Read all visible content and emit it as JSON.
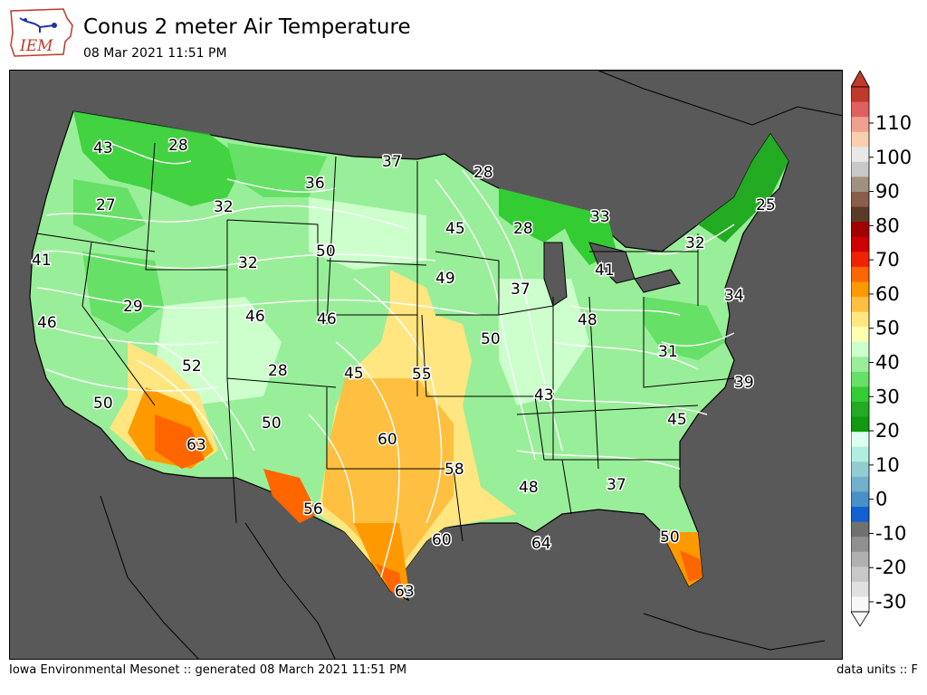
{
  "header": {
    "logo_text": "IEM",
    "title": "Conus 2 meter Air Temperature",
    "subtitle": "08 Mar 2021 11:51 PM"
  },
  "footer": {
    "left": "Iowa Environmental Mesonet :: generated 08 March 2021 11:51 PM",
    "right": "data units :: F"
  },
  "colors": {
    "ocean": "#595959",
    "land_base": "#ccffcc",
    "cold": "#33cc33",
    "cool": "#66e066",
    "mild": "#99ee99",
    "warm": "#ffe680",
    "warmer": "#ffbf40",
    "hot": "#ff9900",
    "hottest": "#ff6600"
  },
  "colorbar": {
    "tick_labels": [
      "110",
      "100",
      "90",
      "80",
      "70",
      "60",
      "50",
      "40",
      "30",
      "20",
      "10",
      "0",
      "-10",
      "-20",
      "-30"
    ],
    "colors": [
      "#c0392b",
      "#e06060",
      "#f0a090",
      "#f8d0b0",
      "#e8e8e8",
      "#c8c8c8",
      "#a09080",
      "#8b5e4a",
      "#5a3a28",
      "#a00000",
      "#cc0000",
      "#ee2200",
      "#ff6600",
      "#ff9900",
      "#ffbf40",
      "#ffe680",
      "#ffffb0",
      "#ccffcc",
      "#99ee99",
      "#66e066",
      "#33cc33",
      "#22aa22",
      "#119911",
      "#ddfff0",
      "#b0eee0",
      "#90ccd0",
      "#70b0c8",
      "#4a90c8",
      "#1060d0",
      "#707070",
      "#909090",
      "#b0b0b0",
      "#c8c8c8",
      "#e0e0e0",
      "#f8f8f8"
    ]
  },
  "temperature_labels": [
    {
      "text": "43"
    },
    {
      "text": "28"
    },
    {
      "text": "37"
    },
    {
      "text": "28"
    },
    {
      "text": "36"
    },
    {
      "text": "27"
    },
    {
      "text": "32"
    },
    {
      "text": "45"
    },
    {
      "text": "28"
    },
    {
      "text": "33"
    },
    {
      "text": "25"
    },
    {
      "text": "50"
    },
    {
      "text": "41"
    },
    {
      "text": "32"
    },
    {
      "text": "32"
    },
    {
      "text": "49"
    },
    {
      "text": "41"
    },
    {
      "text": "29"
    },
    {
      "text": "37"
    },
    {
      "text": "34"
    },
    {
      "text": "46"
    },
    {
      "text": "46"
    },
    {
      "text": "46"
    },
    {
      "text": "48"
    },
    {
      "text": "50"
    },
    {
      "text": "52"
    },
    {
      "text": "28"
    },
    {
      "text": "45"
    },
    {
      "text": "55"
    },
    {
      "text": "31"
    },
    {
      "text": "39"
    },
    {
      "text": "50"
    },
    {
      "text": "43"
    },
    {
      "text": "50"
    },
    {
      "text": "45"
    },
    {
      "text": "63"
    },
    {
      "text": "60"
    },
    {
      "text": "58"
    },
    {
      "text": "48"
    },
    {
      "text": "37"
    },
    {
      "text": "56"
    },
    {
      "text": "60"
    },
    {
      "text": "64"
    },
    {
      "text": "50"
    },
    {
      "text": "63"
    }
  ]
}
